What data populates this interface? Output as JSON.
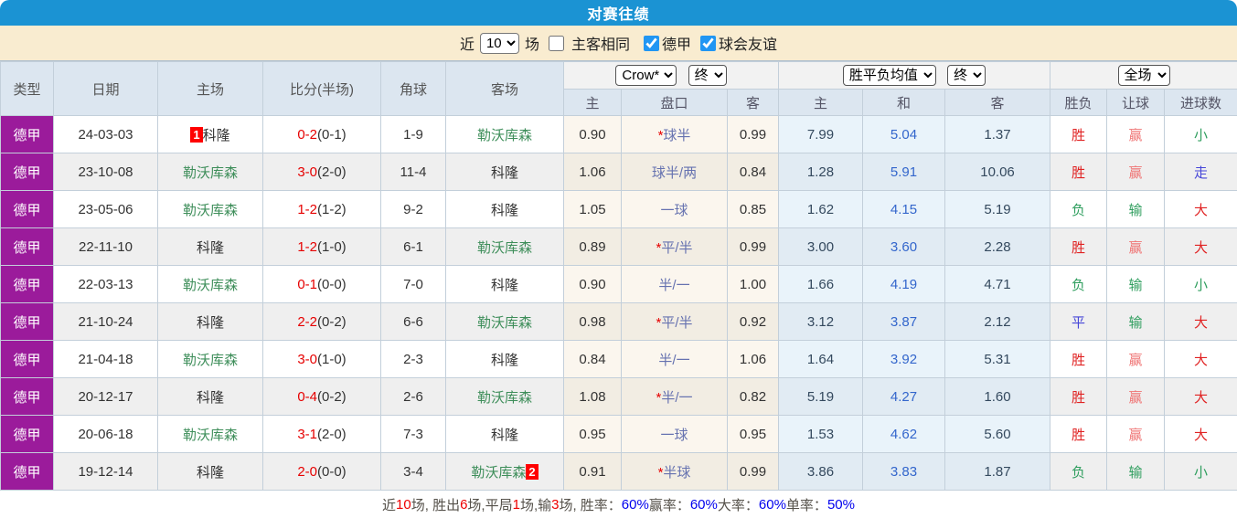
{
  "title": "对赛往绩",
  "colors": {
    "accent_blue": "#1b93d3",
    "league_purple": "#9b1b9b",
    "filter_bg": "#f9ecd0",
    "win_red": "#e02222",
    "loss_green": "#2f9e5e",
    "draw_blue": "#4646d8",
    "cover_pink": "#ef7474",
    "handicap_slate": "#6672b0",
    "avg_draw_blue": "#3366cc",
    "score_red": "#e60000",
    "badge_red": "#ff0000"
  },
  "filter": {
    "near_label": "近",
    "count_value": "10",
    "games_label": "场",
    "same_venue_label": "主客相同",
    "same_venue_checked": false,
    "league_label": "德甲",
    "league_checked": true,
    "friendly_label": "球会友谊",
    "friendly_checked": true
  },
  "header": {
    "columns": [
      "类型",
      "日期",
      "主场",
      "比分(半场)",
      "角球",
      "客场"
    ],
    "sub_columns": [
      "主",
      "盘口",
      "客",
      "主",
      "和",
      "客",
      "胜负",
      "让球",
      "进球数"
    ],
    "dropdowns": {
      "bookmaker": "Crow*",
      "bookmaker_time": "终",
      "avg_type": "胜平负均值",
      "avg_time": "终",
      "scope": "全场"
    }
  },
  "table": {
    "rows": [
      {
        "league": "德甲",
        "date": "24-03-03",
        "home": {
          "name": "科隆",
          "green": false,
          "badge": "1",
          "badgePos": "before"
        },
        "score": "0-2",
        "half": "(0-1)",
        "corners": "1-9",
        "away": {
          "name": "勒沃库森",
          "green": true
        },
        "oddsHome": "0.90",
        "handicap": "*球半",
        "oddsAway": "0.99",
        "avgHome": "7.99",
        "avgDraw": "5.04",
        "avgAway": "1.37",
        "result": {
          "t": "胜",
          "c": "red"
        },
        "cover": {
          "t": "赢",
          "c": "pink"
        },
        "ou": {
          "t": "小",
          "c": "green"
        }
      },
      {
        "league": "德甲",
        "date": "23-10-08",
        "home": {
          "name": "勒沃库森",
          "green": true
        },
        "score": "3-0",
        "half": "(2-0)",
        "corners": "11-4",
        "away": {
          "name": "科隆",
          "green": false
        },
        "oddsHome": "1.06",
        "handicap": "球半/两",
        "oddsAway": "0.84",
        "avgHome": "1.28",
        "avgDraw": "5.91",
        "avgAway": "10.06",
        "result": {
          "t": "胜",
          "c": "red"
        },
        "cover": {
          "t": "赢",
          "c": "pink"
        },
        "ou": {
          "t": "走",
          "c": "blue"
        }
      },
      {
        "league": "德甲",
        "date": "23-05-06",
        "home": {
          "name": "勒沃库森",
          "green": true
        },
        "score": "1-2",
        "half": "(1-2)",
        "corners": "9-2",
        "away": {
          "name": "科隆",
          "green": false
        },
        "oddsHome": "1.05",
        "handicap": "一球",
        "oddsAway": "0.85",
        "avgHome": "1.62",
        "avgDraw": "4.15",
        "avgAway": "5.19",
        "result": {
          "t": "负",
          "c": "green"
        },
        "cover": {
          "t": "输",
          "c": "green"
        },
        "ou": {
          "t": "大",
          "c": "red"
        }
      },
      {
        "league": "德甲",
        "date": "22-11-10",
        "home": {
          "name": "科隆",
          "green": false
        },
        "score": "1-2",
        "half": "(1-0)",
        "corners": "6-1",
        "away": {
          "name": "勒沃库森",
          "green": true
        },
        "oddsHome": "0.89",
        "handicap": "*平/半",
        "oddsAway": "0.99",
        "avgHome": "3.00",
        "avgDraw": "3.60",
        "avgAway": "2.28",
        "result": {
          "t": "胜",
          "c": "red"
        },
        "cover": {
          "t": "赢",
          "c": "pink"
        },
        "ou": {
          "t": "大",
          "c": "red"
        }
      },
      {
        "league": "德甲",
        "date": "22-03-13",
        "home": {
          "name": "勒沃库森",
          "green": true
        },
        "score": "0-1",
        "half": "(0-0)",
        "corners": "7-0",
        "away": {
          "name": "科隆",
          "green": false
        },
        "oddsHome": "0.90",
        "handicap": "半/一",
        "oddsAway": "1.00",
        "avgHome": "1.66",
        "avgDraw": "4.19",
        "avgAway": "4.71",
        "result": {
          "t": "负",
          "c": "green"
        },
        "cover": {
          "t": "输",
          "c": "green"
        },
        "ou": {
          "t": "小",
          "c": "green"
        }
      },
      {
        "league": "德甲",
        "date": "21-10-24",
        "home": {
          "name": "科隆",
          "green": false
        },
        "score": "2-2",
        "half": "(0-2)",
        "corners": "6-6",
        "away": {
          "name": "勒沃库森",
          "green": true
        },
        "oddsHome": "0.98",
        "handicap": "*平/半",
        "oddsAway": "0.92",
        "avgHome": "3.12",
        "avgDraw": "3.87",
        "avgAway": "2.12",
        "result": {
          "t": "平",
          "c": "blue"
        },
        "cover": {
          "t": "输",
          "c": "green"
        },
        "ou": {
          "t": "大",
          "c": "red"
        }
      },
      {
        "league": "德甲",
        "date": "21-04-18",
        "home": {
          "name": "勒沃库森",
          "green": true
        },
        "score": "3-0",
        "half": "(1-0)",
        "corners": "2-3",
        "away": {
          "name": "科隆",
          "green": false
        },
        "oddsHome": "0.84",
        "handicap": "半/一",
        "oddsAway": "1.06",
        "avgHome": "1.64",
        "avgDraw": "3.92",
        "avgAway": "5.31",
        "result": {
          "t": "胜",
          "c": "red"
        },
        "cover": {
          "t": "赢",
          "c": "pink"
        },
        "ou": {
          "t": "大",
          "c": "red"
        }
      },
      {
        "league": "德甲",
        "date": "20-12-17",
        "home": {
          "name": "科隆",
          "green": false
        },
        "score": "0-4",
        "half": "(0-2)",
        "corners": "2-6",
        "away": {
          "name": "勒沃库森",
          "green": true
        },
        "oddsHome": "1.08",
        "handicap": "*半/一",
        "oddsAway": "0.82",
        "avgHome": "5.19",
        "avgDraw": "4.27",
        "avgAway": "1.60",
        "result": {
          "t": "胜",
          "c": "red"
        },
        "cover": {
          "t": "赢",
          "c": "pink"
        },
        "ou": {
          "t": "大",
          "c": "red"
        }
      },
      {
        "league": "德甲",
        "date": "20-06-18",
        "home": {
          "name": "勒沃库森",
          "green": true
        },
        "score": "3-1",
        "half": "(2-0)",
        "corners": "7-3",
        "away": {
          "name": "科隆",
          "green": false
        },
        "oddsHome": "0.95",
        "handicap": "一球",
        "oddsAway": "0.95",
        "avgHome": "1.53",
        "avgDraw": "4.62",
        "avgAway": "5.60",
        "result": {
          "t": "胜",
          "c": "red"
        },
        "cover": {
          "t": "赢",
          "c": "pink"
        },
        "ou": {
          "t": "大",
          "c": "red"
        }
      },
      {
        "league": "德甲",
        "date": "19-12-14",
        "home": {
          "name": "科隆",
          "green": false
        },
        "score": "2-0",
        "half": "(0-0)",
        "corners": "3-4",
        "away": {
          "name": "勒沃库森",
          "green": true,
          "badge": "2",
          "badgePos": "after"
        },
        "oddsHome": "0.91",
        "handicap": "*半球",
        "oddsAway": "0.99",
        "avgHome": "3.86",
        "avgDraw": "3.83",
        "avgAway": "1.87",
        "result": {
          "t": "负",
          "c": "green"
        },
        "cover": {
          "t": "输",
          "c": "green"
        },
        "ou": {
          "t": "小",
          "c": "green"
        }
      }
    ]
  },
  "footer": {
    "segments": [
      {
        "t": "近 ",
        "c": "lbl"
      },
      {
        "t": "10",
        "c": "num"
      },
      {
        "t": " 场, 胜出 ",
        "c": "lbl"
      },
      {
        "t": "6",
        "c": "num"
      },
      {
        "t": " 场,平局 ",
        "c": "lbl"
      },
      {
        "t": "1",
        "c": "num"
      },
      {
        "t": " 场,输 ",
        "c": "lbl"
      },
      {
        "t": "3",
        "c": "num"
      },
      {
        "t": " 场, 胜率： ",
        "c": "lbl"
      },
      {
        "t": "60%",
        "c": "pct"
      },
      {
        "t": " 赢率： ",
        "c": "lbl"
      },
      {
        "t": "60%",
        "c": "pct"
      },
      {
        "t": " 大率： ",
        "c": "lbl"
      },
      {
        "t": "60%",
        "c": "pct"
      },
      {
        "t": " 单率： ",
        "c": "lbl"
      },
      {
        "t": "50%",
        "c": "pct"
      }
    ]
  }
}
